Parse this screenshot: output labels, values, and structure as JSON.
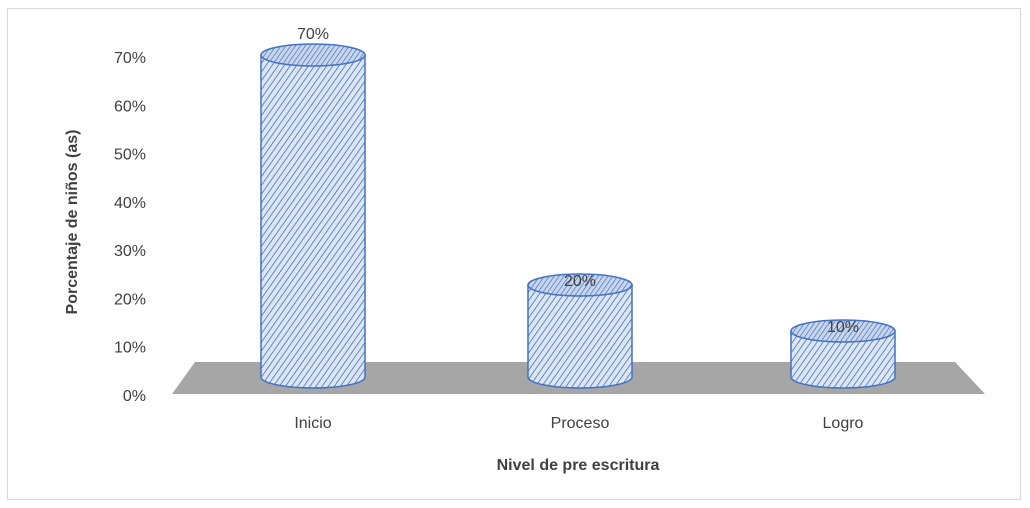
{
  "chart_data": {
    "type": "bar",
    "style": "3d-cylinder",
    "title": "",
    "xlabel": "Nivel de pre escritura",
    "ylabel": "Porcentaje de niños (as)",
    "categories": [
      "Inicio",
      "Proceso",
      "Logro"
    ],
    "values": [
      70,
      20,
      10
    ],
    "data_labels": [
      "70%",
      "20%",
      "10%"
    ],
    "ylim": [
      0,
      70
    ],
    "yticks": [
      0,
      10,
      20,
      30,
      40,
      50,
      60,
      70
    ],
    "ytick_labels": [
      "0%",
      "10%",
      "20%",
      "30%",
      "40%",
      "50%",
      "60%",
      "70%"
    ],
    "grid": false,
    "legend": "none",
    "colors": {
      "bar_fill": "#dbe6f5",
      "bar_hatch": "#4a6fae",
      "bar_outline": "#4472c4",
      "floor": "#a6a6a6"
    }
  }
}
